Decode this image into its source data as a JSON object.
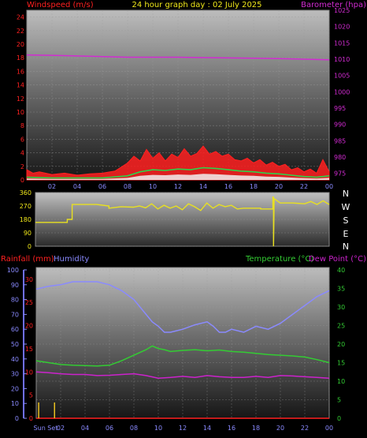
{
  "header": {
    "left_label": "Windspeed (m/s)",
    "title": "24 hour graph day : 02 July 2025",
    "right_label": "Barometer (hpa)"
  },
  "colors": {
    "wind": "#ff2020",
    "gust": "#ff2020",
    "avg": "#2fd24a",
    "calm": "#f0f0f0",
    "baro": "#d22bd2",
    "dir": "#e8e020",
    "rain": "#ff2020",
    "hum": "#8a8aff",
    "temp": "#33cc33",
    "dew": "#cc22cc",
    "tick_left_top": "#ff2020",
    "tick_right_top": "#d22bd2"
  },
  "bottom_header": {
    "rain_label": "Rainfall (mm)",
    "hum_label": "Humidity",
    "temp_label": "Temperature (°C)",
    "dew_label": "Dew Point (°C)"
  },
  "sun_label": "Sun Set",
  "compass": [
    "N",
    "W",
    "S",
    "E",
    "N"
  ],
  "chart_data": [
    {
      "type": "line",
      "name": "wind",
      "x_ticks": [
        "02",
        "04",
        "06",
        "08",
        "10",
        "12",
        "14",
        "16",
        "18",
        "20",
        "22",
        "00"
      ],
      "y_left_ticks": [
        0,
        2,
        4,
        6,
        8,
        10,
        12,
        14,
        16,
        18,
        20,
        22,
        24
      ],
      "y_right_ticks": [
        975,
        980,
        985,
        990,
        995,
        1000,
        1005,
        1010,
        1015,
        1020,
        1025
      ],
      "ylim_left": [
        0,
        25
      ],
      "ylim_right": [
        973,
        1025
      ],
      "xlim_hours": [
        0,
        24
      ],
      "series": [
        {
          "name": "Windspeed (m/s)",
          "axis": "left",
          "x": [
            0,
            0.5,
            1,
            2,
            3,
            4,
            5,
            6,
            7,
            8,
            8.5,
            9,
            9.5,
            10,
            10.5,
            11,
            11.5,
            12,
            12.5,
            13,
            13.5,
            14,
            14.5,
            15,
            15.5,
            16,
            16.5,
            17,
            17.5,
            18,
            18.5,
            19,
            19.5,
            20,
            20.5,
            21,
            21.5,
            22,
            22.5,
            23,
            23.5,
            24
          ],
          "y": [
            1.5,
            1.0,
            1.2,
            0.8,
            1.0,
            0.7,
            0.9,
            1.0,
            1.3,
            2.5,
            3.5,
            2.8,
            4.5,
            3.2,
            4.0,
            2.8,
            3.8,
            3.3,
            4.6,
            3.5,
            3.9,
            5.0,
            3.8,
            4.2,
            3.5,
            3.8,
            3.0,
            2.8,
            3.2,
            2.5,
            3.0,
            2.2,
            2.6,
            2.0,
            2.3,
            1.5,
            1.8,
            1.2,
            1.6,
            1.0,
            3.0,
            1.2
          ]
        },
        {
          "name": "Average",
          "axis": "left",
          "x": [
            0,
            2,
            4,
            6,
            8,
            9,
            10,
            11,
            12,
            13,
            14,
            15,
            16,
            17,
            18,
            19,
            20,
            21,
            22,
            23,
            24
          ],
          "y": [
            0.4,
            0.3,
            0.3,
            0.3,
            0.6,
            1.2,
            1.5,
            1.4,
            1.6,
            1.5,
            1.8,
            1.7,
            1.5,
            1.3,
            1.2,
            1.0,
            0.9,
            0.7,
            0.5,
            0.4,
            0.6
          ]
        },
        {
          "name": "Barometer (hpa)",
          "axis": "right",
          "x": [
            0,
            2,
            4,
            6,
            8,
            10,
            12,
            14,
            16,
            18,
            20,
            22,
            24
          ],
          "y": [
            1011.3,
            1011.2,
            1011.0,
            1010.8,
            1010.6,
            1010.6,
            1010.6,
            1010.5,
            1010.4,
            1010.3,
            1010.2,
            1010.0,
            1009.8
          ]
        }
      ]
    },
    {
      "type": "line",
      "name": "wind-direction",
      "y_ticks": [
        0,
        90,
        180,
        270,
        360
      ],
      "ylim": [
        0,
        360
      ],
      "xlim_hours": [
        0,
        24
      ],
      "series": [
        {
          "name": "Direction",
          "x": [
            0,
            2.6,
            2.6,
            3.0,
            3.0,
            5.0,
            6.0,
            6.0,
            7.0,
            8.0,
            8.5,
            9.0,
            9.5,
            10.0,
            10.5,
            11.0,
            11.5,
            12.0,
            12.5,
            13.0,
            13.5,
            14.0,
            14.5,
            15.0,
            15.5,
            16.0,
            16.5,
            17.0,
            18.0,
            18.4,
            18.4,
            19.4,
            19.4,
            19.45,
            19.45,
            19.5,
            20.0,
            21.0,
            22.0,
            22.5,
            23.0,
            23.5,
            24.0
          ],
          "y": [
            160,
            160,
            180,
            180,
            280,
            280,
            270,
            255,
            265,
            262,
            270,
            258,
            285,
            250,
            275,
            255,
            270,
            245,
            285,
            265,
            240,
            290,
            255,
            280,
            265,
            275,
            250,
            255,
            255,
            255,
            250,
            250,
            330,
            330,
            0,
            320,
            290,
            290,
            285,
            300,
            280,
            305,
            280
          ]
        }
      ]
    },
    {
      "type": "line",
      "name": "temp-hum",
      "x_ticks": [
        "Sun Set",
        "02",
        "04",
        "06",
        "08",
        "10",
        "12",
        "14",
        "16",
        "18",
        "20",
        "22",
        "00"
      ],
      "y_rain_ticks": [
        0,
        10,
        20,
        30,
        40,
        50,
        60,
        70,
        80,
        90,
        100
      ],
      "y_hum_ticks": [
        0,
        5,
        10,
        15,
        20,
        25,
        30
      ],
      "y_temp_ticks": [
        0,
        5,
        10,
        15,
        20,
        25,
        30,
        35,
        40
      ],
      "ylim_hum": [
        0,
        100
      ],
      "ylim_temp": [
        0,
        40
      ],
      "xlim_hours": [
        0,
        24
      ],
      "series": [
        {
          "name": "Humidity",
          "x": [
            0,
            1,
            2,
            3,
            4,
            5,
            6,
            7,
            8,
            9,
            9.5,
            10,
            10.5,
            11,
            12,
            13,
            14,
            14.5,
            15,
            15.5,
            16,
            17,
            18,
            19,
            20,
            21,
            22,
            23,
            24
          ],
          "y": [
            87,
            89,
            90,
            92,
            92,
            92,
            90,
            86,
            80,
            70,
            65,
            62,
            58,
            58,
            60,
            63,
            65,
            62,
            58,
            58,
            60,
            58,
            62,
            60,
            64,
            70,
            76,
            82,
            86
          ]
        },
        {
          "name": "Temperature (°C)",
          "x": [
            0,
            1,
            2,
            3,
            4,
            5,
            6,
            7,
            8,
            9,
            9.5,
            10,
            10.5,
            11,
            12,
            13,
            14,
            15,
            16,
            17,
            18,
            19,
            20,
            21,
            22,
            23,
            24
          ],
          "y": [
            15.5,
            15,
            14.5,
            14.3,
            14.2,
            14.1,
            14.3,
            15.5,
            17,
            18.5,
            19.5,
            18.8,
            18.5,
            18.0,
            18.3,
            18.5,
            18.2,
            18.4,
            18.0,
            17.8,
            17.5,
            17.2,
            17.0,
            16.8,
            16.5,
            15.8,
            15.0
          ]
        },
        {
          "name": "Dew Point (°C)",
          "x": [
            0,
            1,
            2,
            3,
            4,
            5,
            6,
            7,
            8,
            9,
            10,
            11,
            12,
            13,
            14,
            15,
            16,
            17,
            18,
            19,
            20,
            21,
            22,
            23,
            24
          ],
          "y": [
            12.5,
            12.3,
            12.0,
            11.8,
            11.8,
            11.5,
            11.6,
            11.8,
            12.0,
            11.5,
            10.8,
            11.0,
            11.3,
            11.0,
            11.5,
            11.2,
            11.0,
            11.0,
            11.3,
            11.0,
            11.5,
            11.4,
            11.2,
            11.0,
            10.8
          ]
        },
        {
          "name": "Rainfall (mm)",
          "x": [
            0,
            24
          ],
          "y": [
            0,
            0
          ]
        }
      ],
      "sun_markers_hours": [
        0.2,
        1.5
      ]
    }
  ]
}
